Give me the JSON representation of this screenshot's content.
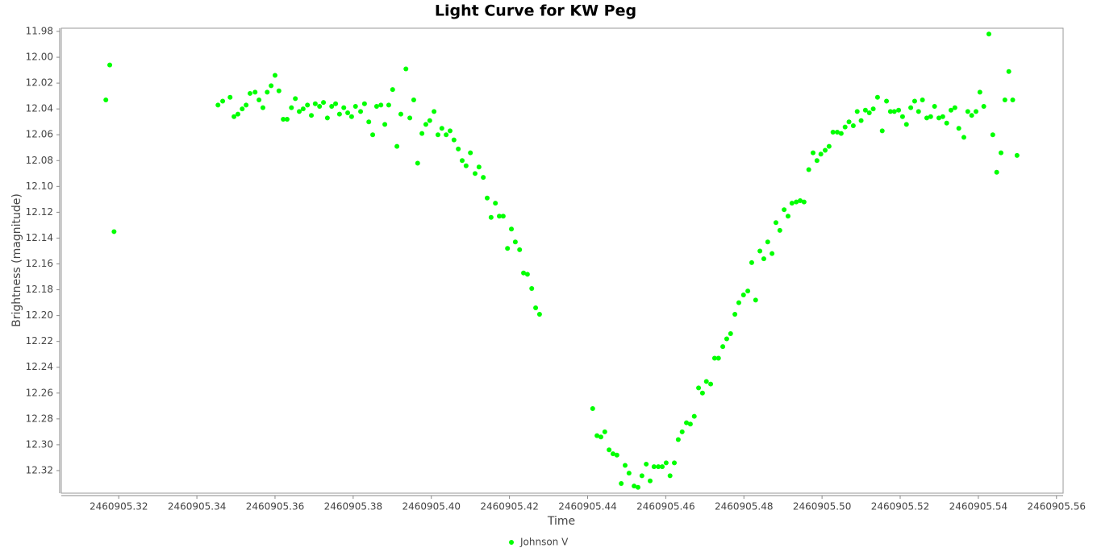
{
  "chart_data": {
    "type": "scatter",
    "title": "Light Curve for KW Peg",
    "x_label": "Time",
    "y_label": "Brightness (magnitude)",
    "xlim": [
      2460905.3053,
      2460905.5617
    ],
    "xticks": [
      2460905.32,
      2460905.34,
      2460905.36,
      2460905.38,
      {
        "value": 2460905.4,
        "label": "2460905.40"
      },
      2460905.42,
      2460905.44,
      2460905.46,
      2460905.48,
      {
        "value": 2460905.5,
        "label": "2460905.50"
      },
      2460905.52,
      2460905.54,
      2460905.56
    ],
    "ylim": [
      11.9775,
      12.3375
    ],
    "y_inverted": true,
    "yticks": [
      11.98,
      {
        "value": 12.0,
        "label": "12.00"
      },
      12.02,
      12.04,
      12.06,
      12.08,
      {
        "value": 12.1,
        "label": "12.10"
      },
      12.12,
      12.14,
      12.16,
      12.18,
      {
        "value": 12.2,
        "label": "12.20"
      },
      12.22,
      12.24,
      12.26,
      12.28,
      {
        "value": 12.3,
        "label": "12.30"
      },
      12.32
    ],
    "grid": false,
    "legend": "bottom",
    "series": [
      {
        "name": "Johnson V",
        "color": "#00ff00",
        "x": [
          2460905.3167,
          2460905.3177,
          2460905.3188,
          2460905.3454,
          2460905.3466,
          2460905.3485,
          2460905.3495,
          2460905.3505,
          2460905.3516,
          2460905.3526,
          2460905.3536,
          2460905.3549,
          2460905.3559,
          2460905.3569,
          2460905.358,
          2460905.359,
          2460905.36,
          2460905.361,
          2460905.3621,
          2460905.3631,
          2460905.3642,
          2460905.3652,
          2460905.3662,
          2460905.3672,
          2460905.3683,
          2460905.3693,
          2460905.3703,
          2460905.3714,
          2460905.3724,
          2460905.3734,
          2460905.3745,
          2460905.3755,
          2460905.3765,
          2460905.3776,
          2460905.3786,
          2460905.3796,
          2460905.3806,
          2460905.3819,
          2460905.3829,
          2460905.384,
          2460905.385,
          2460905.386,
          2460905.3871,
          2460905.3881,
          2460905.3891,
          2460905.3901,
          2460905.3912,
          2460905.3922,
          2460905.3935,
          2460905.3945,
          2460905.3955,
          2460905.3965,
          2460905.3976,
          2460905.3986,
          2460905.3996,
          2460905.4007,
          2460905.4017,
          2460905.4027,
          2460905.4038,
          2460905.4048,
          2460905.4058,
          2460905.4069,
          2460905.4079,
          2460905.4089,
          2460905.41,
          2460905.4112,
          2460905.4122,
          2460905.4133,
          2460905.4143,
          2460905.4153,
          2460905.4164,
          2460905.4174,
          2460905.4184,
          2460905.4195,
          2460905.4205,
          2460905.4215,
          2460905.4226,
          2460905.4236,
          2460905.4246,
          2460905.4257,
          2460905.4267,
          2460905.4277,
          2460905.4413,
          2460905.4424,
          2460905.4434,
          2460905.4444,
          2460905.4455,
          2460905.4465,
          2460905.4475,
          2460905.4486,
          2460905.4496,
          2460905.4506,
          2460905.4519,
          2460905.4529,
          2460905.4539,
          2460905.455,
          2460905.456,
          2460905.457,
          2460905.4581,
          2460905.4591,
          2460905.4601,
          2460905.4611,
          2460905.4622,
          2460905.4632,
          2460905.4642,
          2460905.4653,
          2460905.4663,
          2460905.4673,
          2460905.4684,
          2460905.4694,
          2460905.4704,
          2460905.4715,
          2460905.4725,
          2460905.4735,
          2460905.4746,
          2460905.4756,
          2460905.4766,
          2460905.4777,
          2460905.4787,
          2460905.4799,
          2460905.481,
          2460905.482,
          2460905.483,
          2460905.4841,
          2460905.4851,
          2460905.4861,
          2460905.4872,
          2460905.4882,
          2460905.4892,
          2460905.4903,
          2460905.4913,
          2460905.4923,
          2460905.4934,
          2460905.4944,
          2460905.4954,
          2460905.4966,
          2460905.4977,
          2460905.4987,
          2460905.4997,
          2460905.5008,
          2460905.5018,
          2460905.5028,
          2460905.5039,
          2460905.5049,
          2460905.5059,
          2460905.5069,
          2460905.508,
          2460905.509,
          2460905.51,
          2460905.5111,
          2460905.5121,
          2460905.5131,
          2460905.5142,
          2460905.5154,
          2460905.5165,
          2460905.5175,
          2460905.5185,
          2460905.5196,
          2460905.5206,
          2460905.5216,
          2460905.5227,
          2460905.5237,
          2460905.5247,
          2460905.5257,
          2460905.5268,
          2460905.5278,
          2460905.5288,
          2460905.5299,
          2460905.5309,
          2460905.5319,
          2460905.533,
          2460905.534,
          2460905.535,
          2460905.5363,
          2460905.5373,
          2460905.5383,
          2460905.5394,
          2460905.5404,
          2460905.5414,
          2460905.5427,
          2460905.5437,
          2460905.5447,
          2460905.5458,
          2460905.5468,
          2460905.5478,
          2460905.5488,
          2460905.5499
        ],
        "values": [
          12.033,
          12.006,
          12.135,
          12.037,
          12.034,
          12.031,
          12.046,
          12.044,
          12.04,
          12.037,
          12.028,
          12.027,
          12.033,
          12.039,
          12.027,
          12.022,
          12.014,
          12.026,
          12.048,
          12.048,
          12.039,
          12.032,
          12.042,
          12.04,
          12.037,
          12.045,
          12.036,
          12.038,
          12.035,
          12.047,
          12.038,
          12.036,
          12.044,
          12.039,
          12.043,
          12.046,
          12.038,
          12.042,
          12.036,
          12.05,
          12.06,
          12.038,
          12.037,
          12.052,
          12.037,
          12.025,
          12.069,
          12.044,
          12.009,
          12.047,
          12.033,
          12.082,
          12.059,
          12.052,
          12.049,
          12.042,
          12.06,
          12.055,
          12.06,
          12.057,
          12.064,
          12.071,
          12.08,
          12.084,
          12.074,
          12.09,
          12.085,
          12.093,
          12.109,
          12.124,
          12.113,
          12.123,
          12.123,
          12.148,
          12.133,
          12.143,
          12.149,
          12.167,
          12.168,
          12.179,
          12.194,
          12.199,
          12.272,
          12.293,
          12.294,
          12.29,
          12.304,
          12.307,
          12.308,
          12.33,
          12.316,
          12.322,
          12.332,
          12.333,
          12.324,
          12.315,
          12.328,
          12.317,
          12.317,
          12.317,
          12.314,
          12.324,
          12.314,
          12.296,
          12.29,
          12.283,
          12.284,
          12.278,
          12.256,
          12.26,
          12.251,
          12.253,
          12.233,
          12.233,
          12.224,
          12.218,
          12.214,
          12.199,
          12.19,
          12.184,
          12.181,
          12.159,
          12.188,
          12.15,
          12.156,
          12.143,
          12.152,
          12.128,
          12.134,
          12.118,
          12.123,
          12.113,
          12.112,
          12.111,
          12.112,
          12.087,
          12.074,
          12.08,
          12.075,
          12.072,
          12.069,
          12.058,
          12.058,
          12.059,
          12.054,
          12.05,
          12.053,
          12.042,
          12.049,
          12.041,
          12.043,
          12.04,
          12.031,
          12.057,
          12.034,
          12.042,
          12.042,
          12.041,
          12.046,
          12.052,
          12.039,
          12.034,
          12.042,
          12.033,
          12.047,
          12.046,
          12.038,
          12.047,
          12.046,
          12.051,
          12.041,
          12.039,
          12.055,
          12.062,
          12.042,
          12.045,
          12.042,
          12.027,
          12.038,
          11.982,
          12.06,
          12.089,
          12.074,
          12.033,
          12.011,
          12.033,
          12.076
        ]
      }
    ]
  }
}
